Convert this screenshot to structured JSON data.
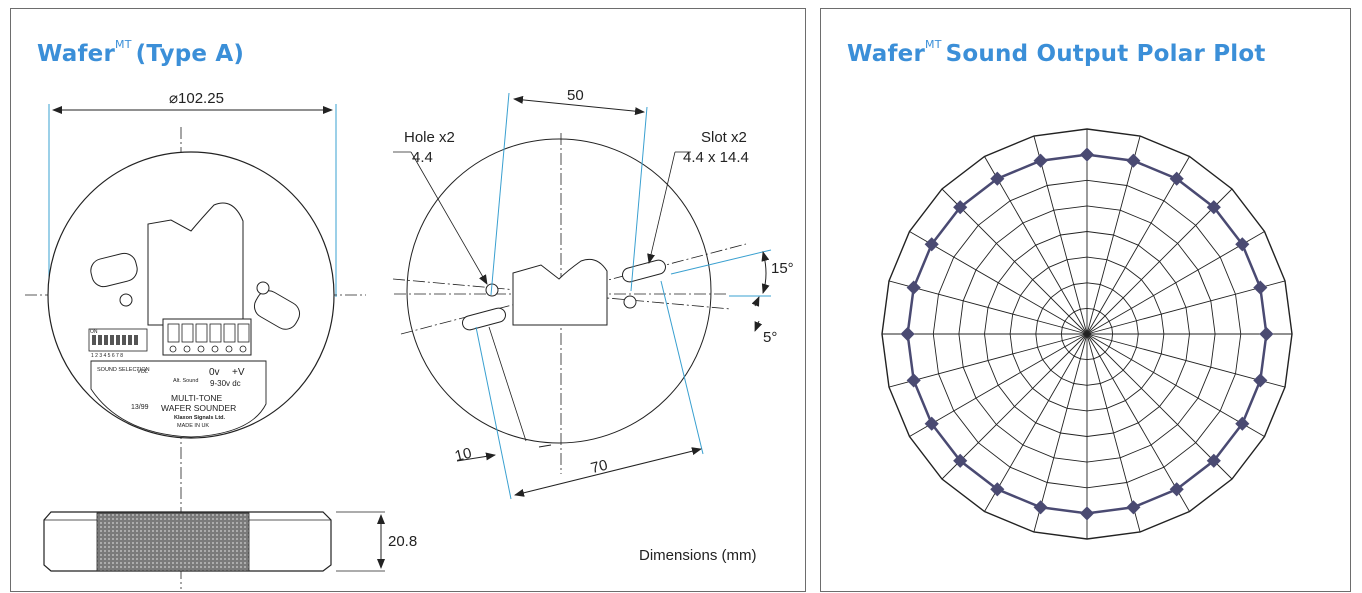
{
  "left_panel": {
    "title": "Wafer",
    "title_sup": "MT",
    "title_suffix": "(Type A)",
    "dimensions": {
      "diameter": "⌀102.25",
      "slot_spacing": "50",
      "hole_spacing": "70",
      "offset": "10",
      "height": "20.8",
      "angle_slot": "15°",
      "angle_hole": "5°"
    },
    "hole_label": {
      "line1": "Hole x2",
      "line2": "4.4"
    },
    "slot_label": {
      "line1": "Slot x2",
      "line2": "4.4 x 14.4"
    },
    "device_labels": {
      "dip_label": "ON",
      "dip_numbers": "1 2 3 4 5 6 7 8",
      "sound_selection": "SOUND SELECTION",
      "vol": "VOL",
      "alt_sound": "Alt. Sound",
      "zero_v": "0v",
      "plus_v": "+V",
      "voltage": "9-30v dc",
      "model": "13/99",
      "name1": "MULTI-TONE",
      "name2": "WAFER SOUNDER",
      "maker": "Klaxon Signals Ltd.",
      "origin": "MADE IN UK"
    },
    "footer": "Dimensions (mm)"
  },
  "right_panel": {
    "title": "Wafer",
    "title_sup": "MT",
    "title_suffix": "Sound Output Polar Plot"
  },
  "chart_data": {
    "type": "polar",
    "rings": 8,
    "spokes": 24,
    "angles_deg": [
      0,
      15,
      30,
      45,
      60,
      75,
      90,
      105,
      120,
      135,
      150,
      165,
      180,
      195,
      210,
      225,
      240,
      255,
      270,
      285,
      300,
      315,
      330,
      345
    ],
    "values": [
      7.0,
      7.0,
      7.0,
      7.0,
      7.0,
      7.0,
      7.0,
      7.0,
      7.0,
      7.0,
      7.0,
      7.0,
      7.0,
      7.0,
      7.0,
      7.0,
      7.0,
      7.0,
      7.0,
      7.0,
      7.0,
      7.0,
      7.0,
      7.0
    ],
    "r_max": 8,
    "series_color": "#4a4a72"
  }
}
